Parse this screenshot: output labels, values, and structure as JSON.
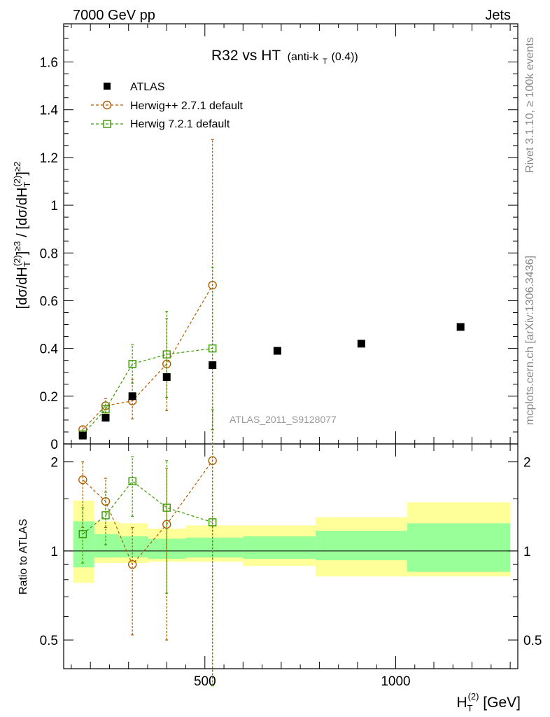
{
  "header": {
    "left": "7000 GeV pp",
    "right": "Jets"
  },
  "side_labels": {
    "rivet": "Rivet 3.1.10, ≥ 100k events",
    "mcplots": "mcplots.cern.ch [arXiv:1306.3436]"
  },
  "colors": {
    "atlas": "#000000",
    "herwigpp": "#b25b00",
    "herwig7": "#3a9a00",
    "band_outer": "#ffff99",
    "band_inner": "#99ff99"
  },
  "chart_data": [
    {
      "type": "scatter",
      "title": "R32 vs HT",
      "title_suffix": "(anti-k",
      "title_suffix_sub": "T",
      "title_suffix_end": "(0.4))",
      "watermark": "ATLAS_2011_S9128077",
      "ylabel": "[dσ/dH_T^(2)]^≥3 / [dσ/dH_T^(2)]^≥2",
      "ylim": [
        0,
        1.76
      ],
      "xlim": [
        130,
        1320
      ],
      "yticks": [
        0,
        0.2,
        0.4,
        0.6,
        0.8,
        1,
        1.2,
        1.4,
        1.6
      ],
      "ytick_labels": [
        "0",
        "0.2",
        "0.4",
        "0.6",
        "0.8",
        "1",
        "1.2",
        "1.4",
        "1.6"
      ],
      "legend": "top-left",
      "series": [
        {
          "name": "ATLAS",
          "marker": "filled-square",
          "x": [
            180,
            240,
            310,
            400,
            520,
            690,
            910,
            1170
          ],
          "y": [
            0.035,
            0.11,
            0.2,
            0.28,
            0.33,
            0.39,
            0.42,
            0.49
          ],
          "ylo": [
            0.035,
            0.11,
            0.2,
            0.28,
            0.33,
            0.39,
            0.42,
            0.49
          ],
          "yhi": [
            0.035,
            0.11,
            0.2,
            0.28,
            0.33,
            0.39,
            0.42,
            0.49
          ]
        },
        {
          "name": "Herwig++ 2.7.1 default",
          "marker": "open-circle",
          "x": [
            180,
            240,
            310,
            400,
            520
          ],
          "y": [
            0.06,
            0.16,
            0.18,
            0.335,
            0.665
          ],
          "ylo": [
            0.04,
            0.13,
            0.105,
            0.14,
            0.06
          ],
          "yhi": [
            0.075,
            0.19,
            0.27,
            0.525,
            1.275
          ]
        },
        {
          "name": "Herwig 7.2.1 default",
          "marker": "open-square",
          "x": [
            180,
            240,
            310,
            400,
            520
          ],
          "y": [
            0.04,
            0.145,
            0.335,
            0.375,
            0.4
          ],
          "ylo": [
            0.03,
            0.115,
            0.255,
            0.195,
            0.06
          ],
          "yhi": [
            0.05,
            0.175,
            0.415,
            0.555,
            0.74
          ]
        }
      ]
    },
    {
      "type": "scatter",
      "ylabel": "Ratio to ATLAS",
      "xlabel": "H_T^(2) [GeV]",
      "ylim": [
        0.4,
        2.3
      ],
      "yscale": "log",
      "xlim": [
        130,
        1320
      ],
      "xticks": [
        500,
        1000
      ],
      "xtick_labels": [
        "500",
        "1000"
      ],
      "yticks": [
        0.5,
        1,
        2
      ],
      "ytick_labels": [
        "0.5",
        "1",
        "2"
      ],
      "bands": {
        "x_edges": [
          155,
          210,
          275,
          350,
          450,
          600,
          790,
          1030,
          1300
        ],
        "outer_lo": [
          0.78,
          0.91,
          0.91,
          0.92,
          0.92,
          0.89,
          0.82,
          0.82,
          0.65
        ],
        "outer_hi": [
          1.48,
          1.26,
          1.24,
          1.19,
          1.22,
          1.22,
          1.3,
          1.46,
          1.46
        ],
        "inner_lo": [
          0.88,
          0.95,
          0.95,
          0.94,
          0.95,
          0.94,
          0.93,
          0.85,
          0.85
        ],
        "inner_hi": [
          1.26,
          1.14,
          1.12,
          1.1,
          1.11,
          1.12,
          1.17,
          1.24,
          1.24
        ]
      },
      "series": [
        {
          "name": "Herwig++ 2.7.1 default",
          "x": [
            180,
            240,
            310,
            400,
            520
          ],
          "y": [
            1.74,
            1.47,
            0.9,
            1.23,
            2.02
          ],
          "ylo": [
            1.2,
            1.2,
            0.52,
            0.5,
            0.35
          ],
          "yhi": [
            2.0,
            1.76,
            1.2,
            1.9,
            3.0
          ]
        },
        {
          "name": "Herwig 7.2.1 default",
          "x": [
            180,
            240,
            310,
            400,
            520
          ],
          "y": [
            1.14,
            1.32,
            1.72,
            1.4,
            1.25
          ],
          "ylo": [
            0.91,
            1.05,
            1.31,
            0.72,
            0.35
          ],
          "yhi": [
            1.4,
            1.58,
            2.08,
            2.02,
            3.0
          ]
        }
      ]
    }
  ]
}
